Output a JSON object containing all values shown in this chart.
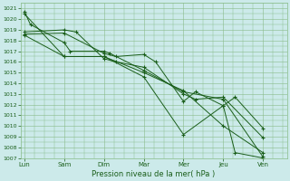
{
  "title": "",
  "xlabel": "Pression niveau de la mer( hPa )",
  "background_color": "#cceaea",
  "grid_color": "#88bb88",
  "line_color": "#1a5e1a",
  "marker_color": "#1a5e1a",
  "ylim": [
    1007,
    1021.5
  ],
  "yticks": [
    1007,
    1008,
    1009,
    1010,
    1011,
    1012,
    1013,
    1014,
    1015,
    1016,
    1017,
    1018,
    1019,
    1020,
    1021
  ],
  "x_labels": [
    "Lun",
    "Sam",
    "Dim",
    "Mar",
    "Mer",
    "Jeu",
    "Ven"
  ],
  "x_positions": [
    0,
    1,
    2,
    3,
    4,
    5,
    6
  ],
  "series": [
    {
      "x": [
        0,
        0.15,
        1,
        1.15,
        2,
        2.15,
        3,
        4,
        5,
        6
      ],
      "y": [
        1020.7,
        1019.5,
        1017.8,
        1017.0,
        1017.0,
        1016.8,
        1015.2,
        1013.2,
        1012.5,
        1007.1
      ]
    },
    {
      "x": [
        0,
        1,
        1.3,
        2,
        2.3,
        3,
        4,
        4.3,
        5,
        6
      ],
      "y": [
        1018.8,
        1019.0,
        1018.8,
        1016.3,
        1016.0,
        1015.5,
        1013.0,
        1012.5,
        1012.7,
        1008.9
      ]
    },
    {
      "x": [
        0,
        1,
        2,
        2.3,
        3,
        3.3,
        4,
        4.3,
        5,
        5.3,
        6
      ],
      "y": [
        1018.6,
        1018.7,
        1016.8,
        1016.5,
        1016.7,
        1016.0,
        1012.3,
        1013.2,
        1011.9,
        1012.7,
        1009.8
      ]
    },
    {
      "x": [
        0,
        1,
        2,
        3,
        4,
        5,
        6
      ],
      "y": [
        1018.5,
        1016.5,
        1016.5,
        1015.0,
        1013.3,
        1010.0,
        1007.5
      ]
    },
    {
      "x": [
        0,
        1,
        2,
        3,
        4,
        5,
        5.3,
        6
      ],
      "y": [
        1020.5,
        1016.5,
        1016.5,
        1014.6,
        1009.2,
        1011.9,
        1007.5,
        1007.0
      ]
    }
  ]
}
